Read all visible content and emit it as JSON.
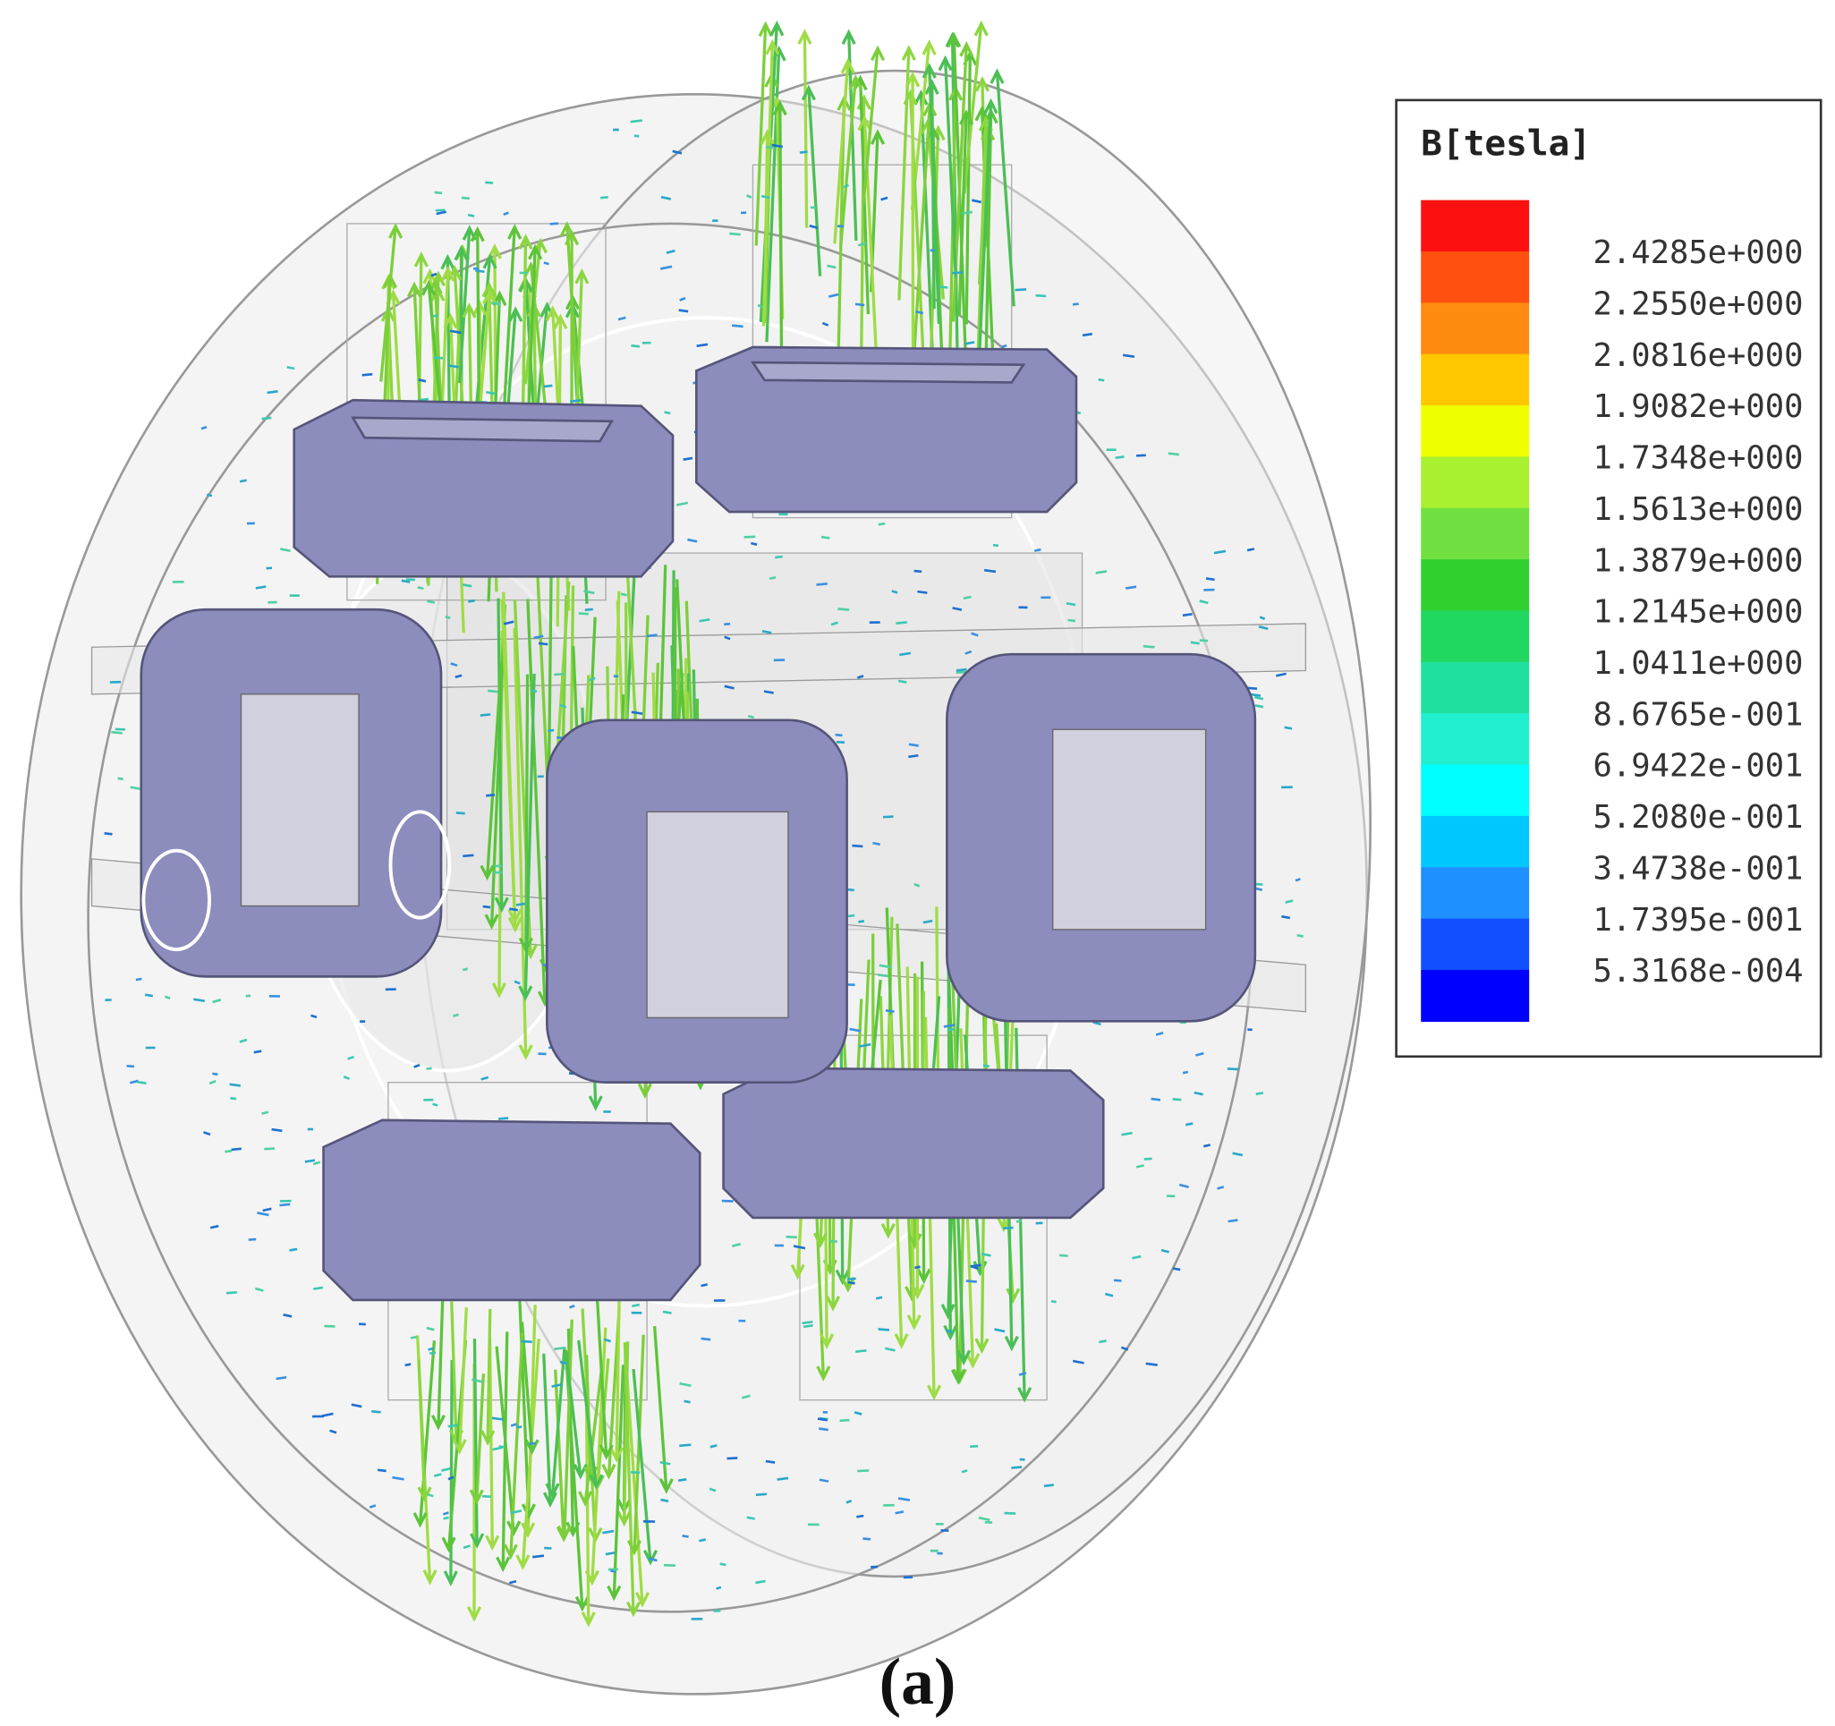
{
  "legend": {
    "title": "B[tesla]",
    "labels": [
      "2.4285e+000",
      "2.2550e+000",
      "2.0816e+000",
      "1.9082e+000",
      "1.7348e+000",
      "1.5613e+000",
      "1.3879e+000",
      "1.2145e+000",
      "1.0411e+000",
      "8.6765e-001",
      "6.9422e-001",
      "5.2080e-001",
      "3.4738e-001",
      "1.7395e-001",
      "5.3168e-004"
    ],
    "colors": [
      "#ff1010",
      "#ff5010",
      "#ff8a10",
      "#ffc800",
      "#f0ff00",
      "#a8f030",
      "#70e040",
      "#30d030",
      "#20d860",
      "#20e0a0",
      "#20f0d0",
      "#00ffff",
      "#00c8ff",
      "#1e90ff",
      "#1050ff",
      "#0000ff"
    ]
  },
  "caption": "(a)"
}
